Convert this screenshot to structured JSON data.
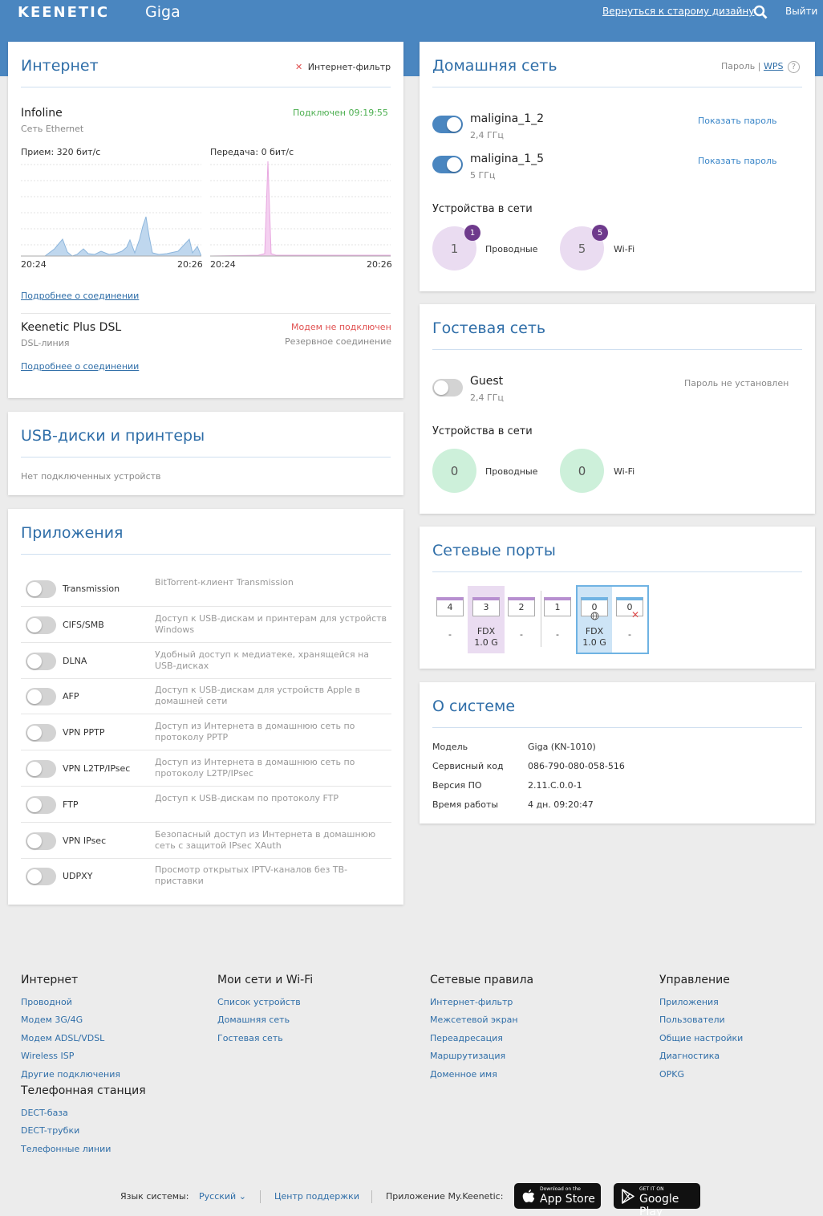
{
  "header": {
    "logo": "KEENETIC",
    "model": "Giga",
    "old_design_link": "Вернуться к старому дизайну",
    "logout": "Выйти"
  },
  "internet": {
    "title": "Интернет",
    "filter_label": "Интернет-фильтр",
    "primary": {
      "name": "Infoline",
      "type": "Сеть Ethernet",
      "status": "Подключен 09:19:55",
      "rx_label": "Прием: 320 бит/с",
      "tx_label": "Передача: 0 бит/с",
      "rx_start": "20:24",
      "rx_end": "20:26",
      "tx_start": "20:24",
      "tx_end": "20:26",
      "details_link": "Подробнее о соединении"
    },
    "backup": {
      "name": "Keenetic Plus DSL",
      "type": "DSL-линия",
      "status": "Модем не подключен",
      "role": "Резервное соединение",
      "details_link": "Подробнее о соединении"
    }
  },
  "usb": {
    "title": "USB-диски и принтеры",
    "empty": "Нет подключенных устройств"
  },
  "apps": {
    "title": "Приложения",
    "items": [
      {
        "name": "Transmission",
        "desc": "BitTorrent-клиент Transmission"
      },
      {
        "name": "CIFS/SMB",
        "desc": "Доступ к USB-дискам и принтерам для устройств Windows"
      },
      {
        "name": "DLNA",
        "desc": "Удобный доступ к медиатеке, хранящейся на USB-дисках"
      },
      {
        "name": "AFP",
        "desc": "Доступ к USB-дискам для устройств Apple в домашней сети"
      },
      {
        "name": "VPN PPTP",
        "desc": "Доступ из Интернета в домашнюю сеть по протоколу PPTP"
      },
      {
        "name": "VPN L2TP/IPsec",
        "desc": "Доступ из Интернета в домашнюю сеть по протоколу L2TP/IPsec"
      },
      {
        "name": "FTP",
        "desc": "Доступ к USB-дискам по протоколу FTP"
      },
      {
        "name": "VPN IPsec",
        "desc": "Безопасный доступ из Интернета в домашнюю сеть с защитой IPsec XAuth"
      },
      {
        "name": "UDPXY",
        "desc": "Просмотр открытых IPTV-каналов без ТВ-приставки"
      }
    ]
  },
  "home": {
    "title": "Домашняя сеть",
    "password_link": "Пароль",
    "wps_link": "WPS",
    "help": "?",
    "networks": [
      {
        "ssid": "maligina_1_2",
        "band": "2,4 ГГц",
        "action": "Показать пароль"
      },
      {
        "ssid": "maligina_1_5",
        "band": "5 ГГц",
        "action": "Показать пароль"
      }
    ],
    "devices_title": "Устройства в сети",
    "wired_count": "1",
    "wired_badge": "1",
    "wired_label": "Проводные",
    "wifi_count": "5",
    "wifi_badge": "5",
    "wifi_label": "Wi-Fi"
  },
  "guest": {
    "title": "Гостевая сеть",
    "ssid": "Guest",
    "band": "2,4 ГГц",
    "pw_status": "Пароль не установлен",
    "devices_title": "Устройства в сети",
    "wired_count": "0",
    "wired_label": "Проводные",
    "wifi_count": "0",
    "wifi_label": "Wi-Fi"
  },
  "ports": {
    "title": "Сетевые порты",
    "items": [
      {
        "num": "4",
        "l1": "-",
        "l2": ""
      },
      {
        "num": "3",
        "l1": "FDX",
        "l2": "1.0 G"
      },
      {
        "num": "2",
        "l1": "-",
        "l2": ""
      },
      {
        "num": "1",
        "l1": "-",
        "l2": ""
      },
      {
        "num": "0",
        "l1": "FDX",
        "l2": "1.0 G"
      },
      {
        "num": "0",
        "l1": "-",
        "l2": ""
      }
    ]
  },
  "system": {
    "title": "О системе",
    "rows": [
      {
        "k": "Модель",
        "v": "Giga (KN-1010)"
      },
      {
        "k": "Сервисный код",
        "v": "086-790-080-058-516"
      },
      {
        "k": "Версия ПО",
        "v": "2.11.C.0.0-1"
      },
      {
        "k": "Время работы",
        "v": "4 дн. 09:20:47"
      }
    ]
  },
  "footer": {
    "col1": {
      "title": "Интернет",
      "links": [
        "Проводной",
        "Модем 3G/4G",
        "Модем ADSL/VDSL",
        "Wireless ISP",
        "Другие подключения"
      ]
    },
    "col1b": {
      "title": "Телефонная станция",
      "links": [
        "DECT-база",
        "DECT-трубки",
        "Телефонные линии"
      ]
    },
    "col2": {
      "title": "Мои сети и Wi-Fi",
      "links": [
        "Список устройств",
        "Домашняя сеть",
        "Гостевая сеть"
      ]
    },
    "col3": {
      "title": "Сетевые правила",
      "links": [
        "Интернет-фильтр",
        "Межсетевой экран",
        "Переадресация",
        "Маршрутизация",
        "Доменное имя"
      ]
    },
    "col4": {
      "title": "Управление",
      "links": [
        "Приложения",
        "Пользователи",
        "Общие настройки",
        "Диагностика",
        "OPKG"
      ]
    }
  },
  "bottom": {
    "lang_label": "Язык системы:",
    "lang_value": "Русский",
    "support": "Центр поддержки",
    "app_label": "Приложение My.Keenetic:",
    "appstore_small": "Download on the",
    "appstore_big": "App Store",
    "gplay_small": "GET IT ON",
    "gplay_big": "Google Play"
  },
  "colors": {
    "header_bg": "#4a86c0",
    "accent": "#2f6ea8",
    "connected": "#4caf50",
    "error": "#e05050",
    "rx_chart": "#8db6dc",
    "tx_chart": "#e8a8e0"
  }
}
